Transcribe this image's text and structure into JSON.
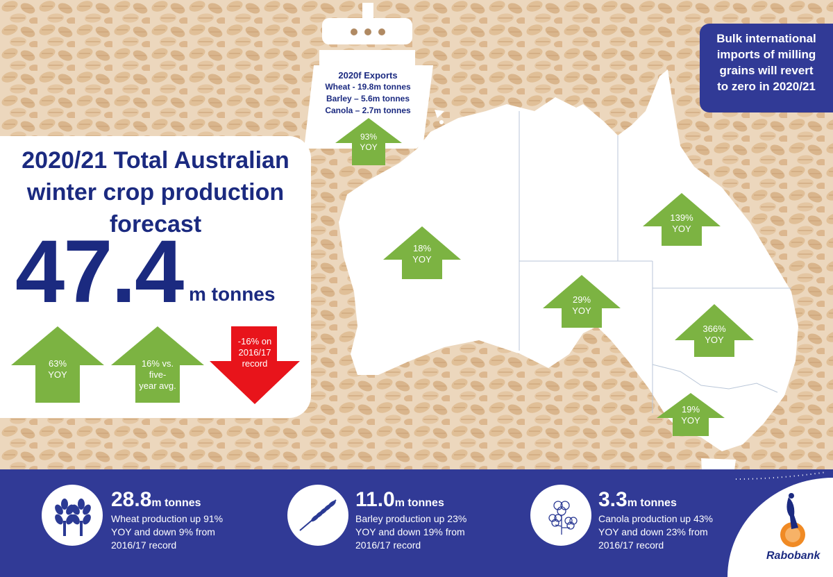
{
  "headline": {
    "line1": "2020/21 Total Australian",
    "line2": "winter crop production",
    "line3": "forecast",
    "value": "47.4",
    "unit": "m tonnes"
  },
  "summary_arrows": [
    {
      "direction": "up",
      "color": "#7cb342",
      "line1": "63%",
      "line2": "YOY",
      "line3": ""
    },
    {
      "direction": "up",
      "color": "#7cb342",
      "line1": "16% vs.",
      "line2": "five-",
      "line3": "year avg."
    },
    {
      "direction": "down",
      "color": "#e8141b",
      "line1": "-16% on",
      "line2": "2016/17",
      "line3": "record"
    }
  ],
  "exports": {
    "title": "2020f Exports",
    "wheat": "Wheat - 19.8m tonnes",
    "barley": "Barley – 5.6m tonnes",
    "canola": "Canola – 2.7m tonnes",
    "change": "93%",
    "change_label": "YOY"
  },
  "callout": {
    "line1": "Bulk international",
    "line2": "imports of milling",
    "line3": "grains will revert",
    "line4": "to zero in 2020/21"
  },
  "states": [
    {
      "name": "WA",
      "value": "18%",
      "label": "YOY"
    },
    {
      "name": "SA",
      "value": "29%",
      "label": "YOY"
    },
    {
      "name": "QLD",
      "value": "139%",
      "label": "YOY"
    },
    {
      "name": "NSW",
      "value": "366%",
      "label": "YOY"
    },
    {
      "name": "VIC",
      "value": "19%",
      "label": "YOY"
    }
  ],
  "crops": [
    {
      "icon": "wheat-icon",
      "value": "28.8",
      "unit": "m tonnes",
      "line1": "Wheat production up 91%",
      "line2": "YOY and down 9% from",
      "line3": "2016/17 record"
    },
    {
      "icon": "barley-icon",
      "value": "11.0",
      "unit": "m tonnes",
      "line1": "Barley production up 23%",
      "line2": "YOY and down 19% from",
      "line3": "2016/17 record"
    },
    {
      "icon": "canola-icon",
      "value": "3.3",
      "unit": "m tonnes",
      "line1": "Canola production up 43%",
      "line2": "YOY and down 23% from",
      "line3": "2016/17 record"
    }
  ],
  "brand": {
    "name": "Rabobank"
  },
  "colors": {
    "navy": "#1b2a80",
    "banner": "#313a96",
    "up_green": "#7cb342",
    "down_red": "#e8141b",
    "grain": "#e9d3b8"
  }
}
